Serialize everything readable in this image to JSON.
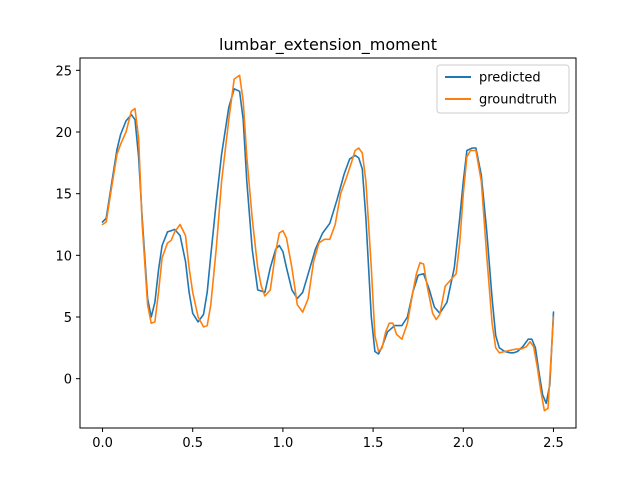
{
  "chart_data": {
    "type": "line",
    "title": "lumbar_extension_moment",
    "xlabel": "",
    "ylabel": "",
    "xlim": [
      -0.125,
      2.625
    ],
    "ylim": [
      -4.0,
      26.0
    ],
    "xticks": [
      0.0,
      0.5,
      1.0,
      1.5,
      2.0,
      2.5
    ],
    "xtick_labels": [
      "0.0",
      "0.5",
      "1.0",
      "1.5",
      "2.0",
      "2.5"
    ],
    "yticks": [
      0,
      5,
      10,
      15,
      20,
      25
    ],
    "ytick_labels": [
      "0",
      "5",
      "10",
      "15",
      "20",
      "25"
    ],
    "grid": false,
    "legend_position": "top-right",
    "series": [
      {
        "name": "predicted",
        "color": "#1f77b4",
        "x": [
          0.0,
          0.02,
          0.05,
          0.08,
          0.1,
          0.13,
          0.16,
          0.18,
          0.2,
          0.22,
          0.25,
          0.27,
          0.29,
          0.31,
          0.33,
          0.36,
          0.38,
          0.4,
          0.43,
          0.46,
          0.48,
          0.5,
          0.53,
          0.56,
          0.58,
          0.6,
          0.63,
          0.66,
          0.7,
          0.73,
          0.76,
          0.78,
          0.8,
          0.83,
          0.86,
          0.9,
          0.93,
          0.96,
          0.98,
          1.0,
          1.02,
          1.05,
          1.08,
          1.11,
          1.14,
          1.18,
          1.22,
          1.26,
          1.3,
          1.34,
          1.37,
          1.4,
          1.42,
          1.44,
          1.46,
          1.49,
          1.51,
          1.53,
          1.55,
          1.58,
          1.62,
          1.66,
          1.69,
          1.72,
          1.75,
          1.78,
          1.81,
          1.84,
          1.87,
          1.91,
          1.95,
          1.98,
          2.0,
          2.02,
          2.05,
          2.07,
          2.1,
          2.13,
          2.16,
          2.18,
          2.2,
          2.23,
          2.26,
          2.28,
          2.3,
          2.33,
          2.36,
          2.38,
          2.4,
          2.42,
          2.44,
          2.46,
          2.48,
          2.5
        ],
        "y": [
          12.7,
          13.0,
          15.8,
          18.6,
          19.8,
          20.9,
          21.4,
          21.0,
          18.0,
          13.0,
          6.5,
          5.0,
          6.2,
          8.8,
          10.8,
          11.9,
          12.0,
          12.1,
          11.6,
          9.5,
          7.0,
          5.3,
          4.6,
          5.2,
          7.0,
          10.0,
          14.3,
          18.2,
          22.0,
          23.5,
          23.3,
          21.0,
          16.0,
          10.5,
          7.2,
          7.0,
          9.0,
          10.5,
          10.8,
          10.3,
          9.0,
          7.2,
          6.5,
          7.0,
          8.5,
          10.5,
          11.8,
          12.6,
          14.5,
          16.6,
          17.8,
          18.1,
          17.9,
          17.0,
          13.0,
          5.0,
          2.2,
          2.0,
          2.6,
          3.8,
          4.3,
          4.3,
          5.0,
          7.0,
          8.4,
          8.5,
          7.3,
          5.8,
          5.3,
          6.2,
          9.0,
          13.0,
          16.0,
          18.5,
          18.7,
          18.7,
          16.5,
          12.0,
          6.5,
          3.5,
          2.5,
          2.2,
          2.1,
          2.1,
          2.2,
          2.6,
          3.2,
          3.2,
          2.5,
          0.5,
          -1.3,
          -2.0,
          -0.5,
          5.4
        ]
      },
      {
        "name": "groundtruth",
        "color": "#ff7f0e",
        "x": [
          0.0,
          0.02,
          0.05,
          0.08,
          0.1,
          0.13,
          0.16,
          0.18,
          0.2,
          0.22,
          0.25,
          0.27,
          0.29,
          0.31,
          0.33,
          0.36,
          0.38,
          0.4,
          0.43,
          0.46,
          0.48,
          0.5,
          0.53,
          0.56,
          0.58,
          0.6,
          0.63,
          0.66,
          0.7,
          0.73,
          0.76,
          0.78,
          0.8,
          0.83,
          0.86,
          0.88,
          0.9,
          0.93,
          0.96,
          0.98,
          1.0,
          1.02,
          1.05,
          1.08,
          1.11,
          1.14,
          1.17,
          1.2,
          1.23,
          1.26,
          1.29,
          1.32,
          1.35,
          1.38,
          1.4,
          1.42,
          1.44,
          1.46,
          1.49,
          1.51,
          1.53,
          1.55,
          1.57,
          1.59,
          1.61,
          1.63,
          1.66,
          1.69,
          1.72,
          1.74,
          1.76,
          1.78,
          1.8,
          1.83,
          1.85,
          1.87,
          1.9,
          1.93,
          1.96,
          1.98,
          2.0,
          2.02,
          2.04,
          2.07,
          2.1,
          2.13,
          2.16,
          2.18,
          2.2,
          2.23,
          2.26,
          2.29,
          2.32,
          2.35,
          2.37,
          2.39,
          2.41,
          2.43,
          2.45,
          2.47,
          2.5
        ],
        "y": [
          12.5,
          12.7,
          15.5,
          18.2,
          19.0,
          20.0,
          21.7,
          21.9,
          19.5,
          12.5,
          6.0,
          4.5,
          4.6,
          7.0,
          9.8,
          11.0,
          11.2,
          11.9,
          12.5,
          11.6,
          9.0,
          7.0,
          5.0,
          4.2,
          4.3,
          6.0,
          10.5,
          16.0,
          21.0,
          24.3,
          24.6,
          22.5,
          18.0,
          13.0,
          9.0,
          7.5,
          6.7,
          7.2,
          10.3,
          11.8,
          12.0,
          11.4,
          9.0,
          6.0,
          5.4,
          6.5,
          9.5,
          11.0,
          11.3,
          11.3,
          12.5,
          15.0,
          16.2,
          17.5,
          18.5,
          18.7,
          18.3,
          16.0,
          9.0,
          3.5,
          2.2,
          2.5,
          3.8,
          4.5,
          4.5,
          3.6,
          3.2,
          4.5,
          7.0,
          8.5,
          9.4,
          9.3,
          7.5,
          5.3,
          4.8,
          5.2,
          7.5,
          8.0,
          8.5,
          11.0,
          15.0,
          18.0,
          18.5,
          18.5,
          16.0,
          10.0,
          4.5,
          2.5,
          2.1,
          2.2,
          2.3,
          2.4,
          2.4,
          2.6,
          3.0,
          2.6,
          1.0,
          -1.0,
          -2.6,
          -2.4,
          5.0
        ]
      }
    ]
  }
}
